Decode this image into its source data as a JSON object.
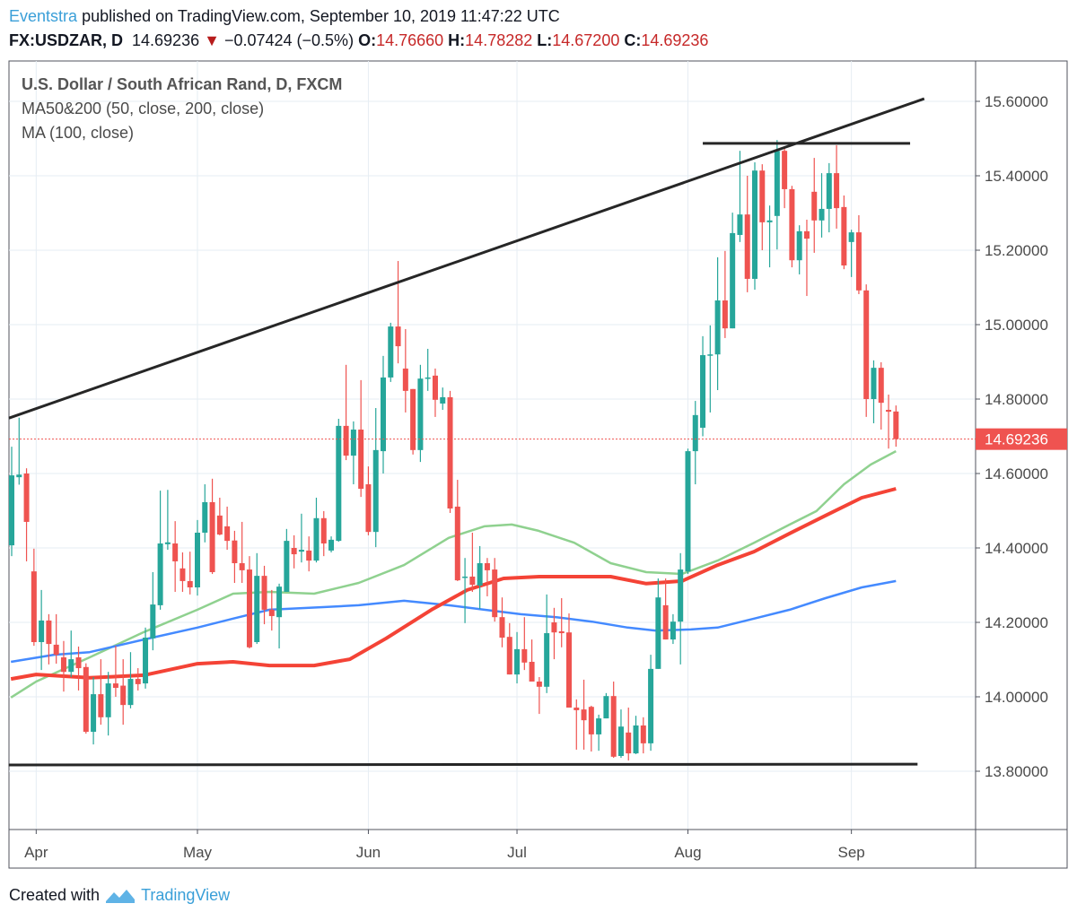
{
  "header": {
    "author": "Eventstra",
    "published_text": "published on TradingView.com, September 10, 2019 11:47:22 UTC",
    "symbol": "FX:USDZAR, D",
    "last": "14.69236",
    "change": "−0.07424 (−0.5%)",
    "o_label": "O:",
    "o": "14.76660",
    "h_label": "H:",
    "h": "14.78282",
    "l_label": "L:",
    "l": "14.67200",
    "c_label": "C:",
    "c": "14.69236"
  },
  "legend": {
    "title": "U.S. Dollar / South African Rand, D, FXCM",
    "ma50_200": "MA50&200 (50, close, 200, close)",
    "ma100": "MA (100, close)"
  },
  "footer": {
    "created_with": "Created with",
    "brand": "TradingView"
  },
  "chart_data": {
    "type": "candlestick",
    "title": "U.S. Dollar / South African Rand, D, FXCM",
    "ylim": [
      13.62,
      15.71
    ],
    "grid": true,
    "y_ticks": [
      "15.60000",
      "15.40000",
      "15.20000",
      "15.00000",
      "14.80000",
      "14.60000",
      "14.40000",
      "14.20000",
      "14.00000",
      "13.80000"
    ],
    "y_tick_values": [
      15.6,
      15.4,
      15.2,
      15.0,
      14.8,
      14.6,
      14.4,
      14.2,
      14.0,
      13.8
    ],
    "x_ticks": [
      {
        "label": "Apr",
        "index": 3.3
      },
      {
        "label": "May",
        "index": 25
      },
      {
        "label": "Jun",
        "index": 48
      },
      {
        "label": "Jul",
        "index": 68
      },
      {
        "label": "Aug",
        "index": 91
      },
      {
        "label": "Sep",
        "index": 113
      }
    ],
    "last_price": {
      "value": 14.69236,
      "label": "14.69236"
    },
    "colors": {
      "up": "#26a69a",
      "down": "#ef5350",
      "ma50": "#8fd18f",
      "ma100": "#448aff",
      "ma200": "#f44336",
      "trend": "#262626",
      "last": "#ef5350"
    },
    "ohlc": [
      [
        14.407,
        14.672,
        14.378,
        14.595
      ],
      [
        14.59,
        14.75,
        14.57,
        14.597
      ],
      [
        14.6,
        14.614,
        14.364,
        14.47
      ],
      [
        14.337,
        14.398,
        14.137,
        14.147
      ],
      [
        14.147,
        14.287,
        14.072,
        14.205
      ],
      [
        14.205,
        14.222,
        14.087,
        14.142
      ],
      [
        14.14,
        14.222,
        14.089,
        14.113
      ],
      [
        14.106,
        14.15,
        14.014,
        14.067
      ],
      [
        14.067,
        14.178,
        14.053,
        14.101
      ],
      [
        14.106,
        14.135,
        14.017,
        14.077
      ],
      [
        14.08,
        14.09,
        13.901,
        13.906
      ],
      [
        13.906,
        14.053,
        13.872,
        14.007
      ],
      [
        14.007,
        14.101,
        13.925,
        13.945
      ],
      [
        13.945,
        14.067,
        13.896,
        14.036
      ],
      [
        14.036,
        14.137,
        14.0,
        14.024
      ],
      [
        14.03,
        14.101,
        13.925,
        13.978
      ],
      [
        13.978,
        14.12,
        13.969,
        14.048
      ],
      [
        14.048,
        14.077,
        14.017,
        14.034
      ],
      [
        14.036,
        14.186,
        14.022,
        14.159
      ],
      [
        14.157,
        14.335,
        14.125,
        14.248
      ],
      [
        14.246,
        14.554,
        14.234,
        14.412
      ],
      [
        14.41,
        14.556,
        14.395,
        14.415
      ],
      [
        14.412,
        14.472,
        14.282,
        14.364
      ],
      [
        14.345,
        14.388,
        14.282,
        14.311
      ],
      [
        14.311,
        14.39,
        14.275,
        14.294
      ],
      [
        14.294,
        14.475,
        14.272,
        14.441
      ],
      [
        14.441,
        14.571,
        14.415,
        14.523
      ],
      [
        14.523,
        14.586,
        14.33,
        14.335
      ],
      [
        14.487,
        14.535,
        14.434,
        14.436
      ],
      [
        14.458,
        14.511,
        14.395,
        14.419
      ],
      [
        14.42,
        14.446,
        14.306,
        14.359
      ],
      [
        14.359,
        14.47,
        14.306,
        14.34
      ],
      [
        14.342,
        14.378,
        14.13,
        14.133
      ],
      [
        14.147,
        14.386,
        14.142,
        14.325
      ],
      [
        14.325,
        14.352,
        14.195,
        14.234
      ],
      [
        14.234,
        14.287,
        14.178,
        14.217
      ],
      [
        14.214,
        14.304,
        14.13,
        14.296
      ],
      [
        14.282,
        14.451,
        14.282,
        14.419
      ],
      [
        14.4,
        14.434,
        14.345,
        14.383
      ],
      [
        14.39,
        14.492,
        14.361,
        14.395
      ],
      [
        14.393,
        14.431,
        14.337,
        14.366
      ],
      [
        14.366,
        14.535,
        14.361,
        14.48
      ],
      [
        14.48,
        14.499,
        14.378,
        14.412
      ],
      [
        14.393,
        14.431,
        14.388,
        14.422
      ],
      [
        14.419,
        14.747,
        14.417,
        14.728
      ],
      [
        14.728,
        14.892,
        14.636,
        14.648
      ],
      [
        14.648,
        14.74,
        14.571,
        14.718
      ],
      [
        14.718,
        14.851,
        14.537,
        14.559
      ],
      [
        14.571,
        14.619,
        14.434,
        14.443
      ],
      [
        14.443,
        14.776,
        14.402,
        14.663
      ],
      [
        14.66,
        14.916,
        14.6,
        14.858
      ],
      [
        14.858,
        15.005,
        14.846,
        14.995
      ],
      [
        14.995,
        15.171,
        14.896,
        14.942
      ],
      [
        14.882,
        14.988,
        14.764,
        14.822
      ],
      [
        14.827,
        14.827,
        14.651,
        14.663
      ],
      [
        14.663,
        14.892,
        14.631,
        14.855
      ],
      [
        14.855,
        14.935,
        14.822,
        14.858
      ],
      [
        14.863,
        14.882,
        14.752,
        14.798
      ],
      [
        14.788,
        14.831,
        14.771,
        14.805
      ],
      [
        14.805,
        14.822,
        14.494,
        14.506
      ],
      [
        14.511,
        14.583,
        14.311,
        14.313
      ],
      [
        14.32,
        14.373,
        14.198,
        14.323
      ],
      [
        14.323,
        14.441,
        14.282,
        14.301
      ],
      [
        14.299,
        14.405,
        14.236,
        14.359
      ],
      [
        14.359,
        14.373,
        14.27,
        14.34
      ],
      [
        14.342,
        14.373,
        14.202,
        14.214
      ],
      [
        14.214,
        14.267,
        14.133,
        14.159
      ],
      [
        14.161,
        14.198,
        14.06,
        14.06
      ],
      [
        14.06,
        14.174,
        14.036,
        14.128
      ],
      [
        14.128,
        14.214,
        14.072,
        14.092
      ],
      [
        14.094,
        14.154,
        14.041,
        14.041
      ],
      [
        14.041,
        14.053,
        13.954,
        14.027
      ],
      [
        14.027,
        14.275,
        14.01,
        14.171
      ],
      [
        14.2,
        14.239,
        14.101,
        14.173
      ],
      [
        14.176,
        14.265,
        14.133,
        14.171
      ],
      [
        14.173,
        14.224,
        13.971,
        13.971
      ],
      [
        13.971,
        13.993,
        13.858,
        13.964
      ],
      [
        13.966,
        14.046,
        13.858,
        13.937
      ],
      [
        13.973,
        13.976,
        13.853,
        13.899
      ],
      [
        13.899,
        13.952,
        13.855,
        13.942
      ],
      [
        13.942,
        14.01,
        13.942,
        14.002
      ],
      [
        14.002,
        14.041,
        13.836,
        13.839
      ],
      [
        13.841,
        13.966,
        13.836,
        13.92
      ],
      [
        13.904,
        13.971,
        13.829,
        13.848
      ],
      [
        13.848,
        13.949,
        13.846,
        13.923
      ],
      [
        13.923,
        13.945,
        13.848,
        13.875
      ],
      [
        13.875,
        14.113,
        13.855,
        14.075
      ],
      [
        14.075,
        14.318,
        14.075,
        14.267
      ],
      [
        14.246,
        14.318,
        14.154,
        14.154
      ],
      [
        14.154,
        14.222,
        14.142,
        14.202
      ],
      [
        14.202,
        14.386,
        14.087,
        14.342
      ],
      [
        14.337,
        14.667,
        14.33,
        14.66
      ],
      [
        14.66,
        14.795,
        14.571,
        14.757
      ],
      [
        14.723,
        14.969,
        14.7,
        14.918
      ],
      [
        14.918,
        14.998,
        14.764,
        14.92
      ],
      [
        14.92,
        15.181,
        14.824,
        15.065
      ],
      [
        15.065,
        15.198,
        14.964,
        14.99
      ],
      [
        14.99,
        15.301,
        14.99,
        15.246
      ],
      [
        15.241,
        15.467,
        15.222,
        15.296
      ],
      [
        15.296,
        15.4,
        15.087,
        15.123
      ],
      [
        15.123,
        15.436,
        15.094,
        15.414
      ],
      [
        15.414,
        15.431,
        15.2,
        15.275
      ],
      [
        15.275,
        15.32,
        15.154,
        15.28
      ],
      [
        15.292,
        15.496,
        15.202,
        15.467
      ],
      [
        15.467,
        15.474,
        15.313,
        15.364
      ],
      [
        15.364,
        15.373,
        15.154,
        15.173
      ],
      [
        15.173,
        15.267,
        15.135,
        15.251
      ],
      [
        15.251,
        15.282,
        15.077,
        15.231
      ],
      [
        15.357,
        15.448,
        15.193,
        15.28
      ],
      [
        15.28,
        15.407,
        15.234,
        15.311
      ],
      [
        15.311,
        15.434,
        15.248,
        15.407
      ],
      [
        15.407,
        15.482,
        15.258,
        15.313
      ],
      [
        15.316,
        15.347,
        15.149,
        15.159
      ],
      [
        15.222,
        15.255,
        15.128,
        15.248
      ],
      [
        15.248,
        15.294,
        15.082,
        15.092
      ],
      [
        15.092,
        15.108,
        14.752,
        14.8
      ],
      [
        14.8,
        14.904,
        14.735,
        14.884
      ],
      [
        14.884,
        14.899,
        14.718,
        14.79
      ],
      [
        14.771,
        14.812,
        14.667,
        14.766
      ],
      [
        14.7666,
        14.78282,
        14.672,
        14.69236
      ]
    ],
    "series": [
      {
        "name": "MA50",
        "points": [
          [
            -0.1,
            13.998
          ],
          [
            3.3,
            14.041
          ],
          [
            10.5,
            14.106
          ],
          [
            17.8,
            14.174
          ],
          [
            25,
            14.234
          ],
          [
            29.8,
            14.277
          ],
          [
            34.7,
            14.282
          ],
          [
            40.7,
            14.277
          ],
          [
            46.7,
            14.306
          ],
          [
            52.8,
            14.354
          ],
          [
            58.8,
            14.427
          ],
          [
            63.6,
            14.458
          ],
          [
            67.3,
            14.463
          ],
          [
            70.9,
            14.446
          ],
          [
            75.7,
            14.414
          ],
          [
            80.6,
            14.359
          ],
          [
            85.4,
            14.335
          ],
          [
            90.2,
            14.33
          ],
          [
            95,
            14.366
          ],
          [
            99.9,
            14.414
          ],
          [
            104.7,
            14.463
          ],
          [
            108.3,
            14.499
          ],
          [
            112,
            14.571
          ],
          [
            115.6,
            14.624
          ],
          [
            119,
            14.66
          ]
        ]
      },
      {
        "name": "MA100",
        "points": [
          [
            -0.1,
            14.094
          ],
          [
            5.7,
            14.113
          ],
          [
            10.5,
            14.12
          ],
          [
            17.8,
            14.154
          ],
          [
            25,
            14.186
          ],
          [
            29.8,
            14.21
          ],
          [
            34.7,
            14.234
          ],
          [
            41.9,
            14.241
          ],
          [
            46.7,
            14.246
          ],
          [
            52.8,
            14.258
          ],
          [
            58.8,
            14.246
          ],
          [
            63.6,
            14.234
          ],
          [
            68.5,
            14.222
          ],
          [
            73.3,
            14.214
          ],
          [
            78.1,
            14.202
          ],
          [
            82.9,
            14.186
          ],
          [
            86.6,
            14.178
          ],
          [
            91.4,
            14.181
          ],
          [
            95,
            14.186
          ],
          [
            99.9,
            14.21
          ],
          [
            104.7,
            14.234
          ],
          [
            109.5,
            14.265
          ],
          [
            114.4,
            14.294
          ],
          [
            119,
            14.311
          ]
        ]
      },
      {
        "name": "MA200",
        "points": [
          [
            -0.1,
            14.048
          ],
          [
            3.3,
            14.06
          ],
          [
            10.5,
            14.051
          ],
          [
            17.8,
            14.058
          ],
          [
            25,
            14.089
          ],
          [
            29.8,
            14.094
          ],
          [
            34.7,
            14.084
          ],
          [
            40.7,
            14.084
          ],
          [
            45.5,
            14.101
          ],
          [
            50.4,
            14.157
          ],
          [
            56.5,
            14.234
          ],
          [
            61.3,
            14.287
          ],
          [
            66.2,
            14.318
          ],
          [
            71,
            14.323
          ],
          [
            75.7,
            14.323
          ],
          [
            80.6,
            14.323
          ],
          [
            85.4,
            14.304
          ],
          [
            90.2,
            14.311
          ],
          [
            95,
            14.354
          ],
          [
            99.9,
            14.39
          ],
          [
            104.7,
            14.439
          ],
          [
            109.5,
            14.487
          ],
          [
            114.4,
            14.535
          ],
          [
            119,
            14.559
          ]
        ]
      }
    ],
    "trendlines": [
      {
        "name": "rising-resistance",
        "from": [
          -0.36,
          14.749
        ],
        "to": [
          122.8,
          15.607
        ]
      },
      {
        "name": "horizontal-resistance",
        "from": [
          93,
          15.487
        ],
        "to": [
          120.9,
          15.487
        ]
      },
      {
        "name": "horizontal-support",
        "from": [
          -0.4,
          13.817
        ],
        "to": [
          121.9,
          13.819
        ]
      }
    ]
  }
}
